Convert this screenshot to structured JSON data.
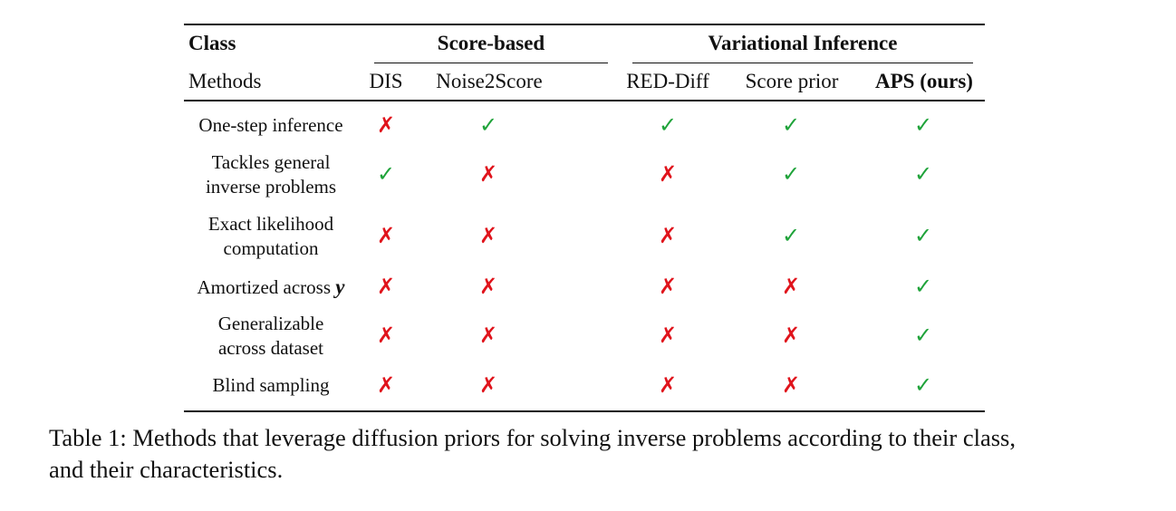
{
  "table": {
    "header": {
      "class_label": "Class",
      "methods_label": "Methods",
      "groups": [
        {
          "label": "Score-based"
        },
        {
          "label": "Variational Inference"
        }
      ],
      "methods": [
        "DIS",
        "Noise2Score",
        "RED-Diff",
        "Score prior",
        "APS (ours)"
      ]
    },
    "rows": [
      {
        "feature_lines": [
          "One-step inference"
        ],
        "marks": [
          "✗",
          "✓",
          "✓",
          "✓",
          "✓"
        ]
      },
      {
        "feature_lines": [
          "Tackles general",
          "inverse problems"
        ],
        "marks": [
          "✓",
          "✗",
          "✗",
          "✓",
          "✓"
        ]
      },
      {
        "feature_lines": [
          "Exact likelihood",
          "computation"
        ],
        "marks": [
          "✗",
          "✗",
          "✗",
          "✓",
          "✓"
        ]
      },
      {
        "feature_lines": [
          "Amortized across",
          "y"
        ],
        "marks": [
          "✗",
          "✗",
          "✗",
          "✗",
          "✓"
        ]
      },
      {
        "feature_lines": [
          "Generalizable",
          "across dataset"
        ],
        "marks": [
          "✗",
          "✗",
          "✗",
          "✗",
          "✓"
        ]
      },
      {
        "feature_lines": [
          "Blind sampling"
        ],
        "marks": [
          "✗",
          "✗",
          "✗",
          "✗",
          "✓"
        ]
      }
    ],
    "colors": {
      "check": "#1fa33a",
      "cross": "#e0141c"
    }
  },
  "caption": {
    "line1": "Table 1: Methods that leverage diffusion priors for solving inverse problems according to their class,",
    "line2": "and their characteristics."
  }
}
